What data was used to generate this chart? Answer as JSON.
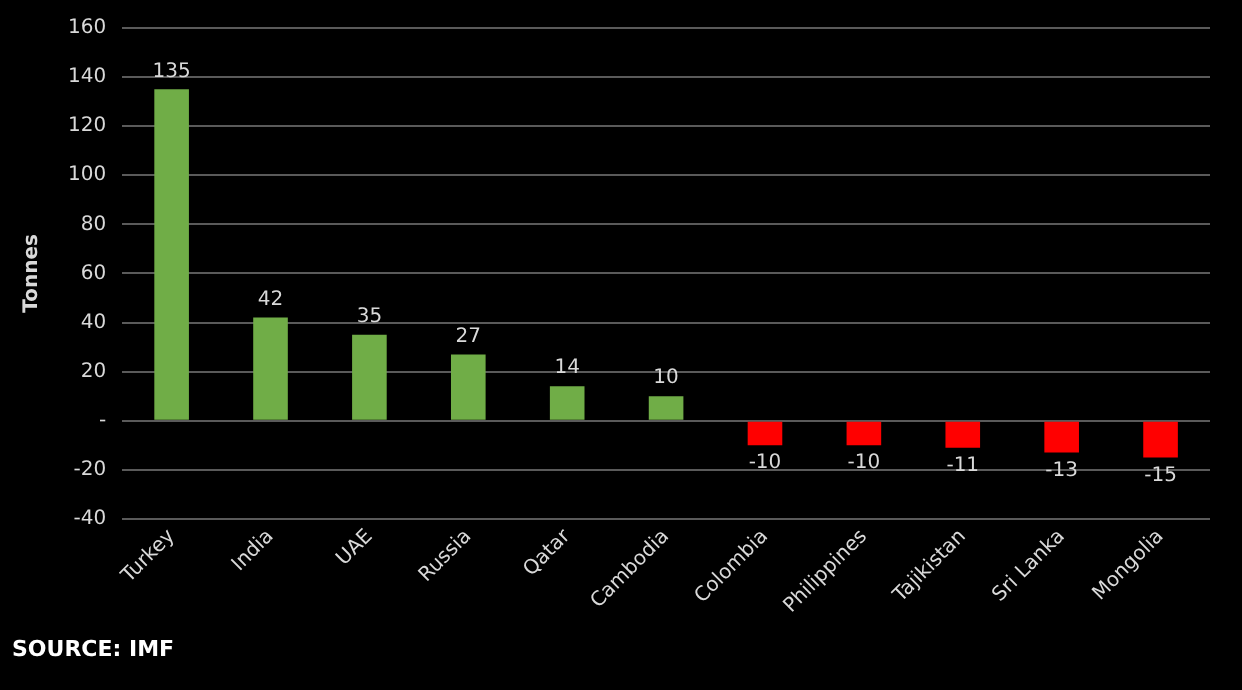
{
  "chart_data": {
    "type": "bar",
    "ylabel": "Tonnes",
    "categories": [
      "Turkey",
      "India",
      "UAE",
      "Russia",
      "Qatar",
      "Cambodia",
      "Colombia",
      "Philippines",
      "Tajikistan",
      "Sri Lanka",
      "Mongolia"
    ],
    "values": [
      135,
      42,
      35,
      27,
      14,
      10,
      -10,
      -10,
      -11,
      -13,
      -15
    ],
    "colors": [
      "#70ad47",
      "#70ad47",
      "#70ad47",
      "#70ad47",
      "#70ad47",
      "#70ad47",
      "#ff0000",
      "#ff0000",
      "#ff0000",
      "#ff0000",
      "#ff0000"
    ],
    "ylim": [
      -40,
      160
    ],
    "yticks": [
      -40,
      -20,
      {
        "value": 0,
        "label": "-"
      },
      20,
      40,
      60,
      80,
      100,
      120,
      140,
      160
    ],
    "grid": "y",
    "legend": false,
    "data_labels": true,
    "annotations": [
      "SOURCE: IMF"
    ]
  }
}
